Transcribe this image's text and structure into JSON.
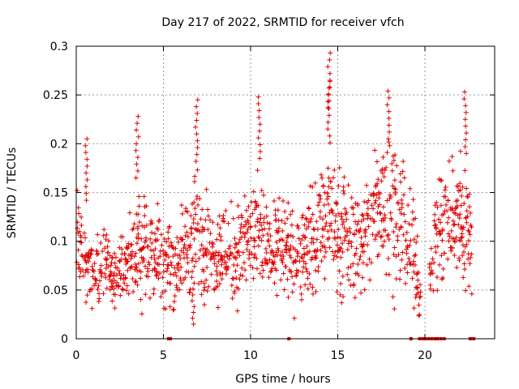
{
  "chart_data": {
    "type": "scatter",
    "title": "Day 217 of 2022, SRMTID for receiver vfch",
    "xlabel": "GPS time / hours",
    "ylabel": "SRMTID / TECUs",
    "xlim": [
      0,
      24
    ],
    "ylim": [
      0,
      0.3
    ],
    "x_ticks": [
      0,
      5,
      10,
      15,
      20
    ],
    "y_ticks": [
      0,
      0.05,
      0.1,
      0.15,
      0.2,
      0.25,
      0.3
    ],
    "x_tick_labels": [
      "0",
      "5",
      "10",
      "15",
      "20"
    ],
    "y_tick_labels": [
      "0",
      "0.05",
      "0.1",
      "0.15",
      "0.2",
      "0.25",
      "0.3"
    ],
    "grid": true,
    "marker": "+",
    "series": [
      {
        "name": "SRMTID",
        "color": "#e00000",
        "envelope": [
          {
            "x": 0.0,
            "y": 0.11
          },
          {
            "x": 0.5,
            "y": 0.085
          },
          {
            "x": 1.0,
            "y": 0.075
          },
          {
            "x": 1.5,
            "y": 0.08
          },
          {
            "x": 2.0,
            "y": 0.07
          },
          {
            "x": 2.5,
            "y": 0.07
          },
          {
            "x": 3.0,
            "y": 0.075
          },
          {
            "x": 3.5,
            "y": 0.09
          },
          {
            "x": 4.0,
            "y": 0.095
          },
          {
            "x": 4.5,
            "y": 0.09
          },
          {
            "x": 5.0,
            "y": 0.085
          },
          {
            "x": 5.5,
            "y": 0.075
          },
          {
            "x": 6.0,
            "y": 0.08
          },
          {
            "x": 6.5,
            "y": 0.1
          },
          {
            "x": 7.0,
            "y": 0.11
          },
          {
            "x": 7.5,
            "y": 0.1
          },
          {
            "x": 8.0,
            "y": 0.095
          },
          {
            "x": 8.5,
            "y": 0.09
          },
          {
            "x": 9.0,
            "y": 0.085
          },
          {
            "x": 9.5,
            "y": 0.09
          },
          {
            "x": 10.0,
            "y": 0.105
          },
          {
            "x": 10.5,
            "y": 0.1
          },
          {
            "x": 11.0,
            "y": 0.095
          },
          {
            "x": 11.5,
            "y": 0.09
          },
          {
            "x": 12.0,
            "y": 0.085
          },
          {
            "x": 12.5,
            "y": 0.08
          },
          {
            "x": 13.0,
            "y": 0.09
          },
          {
            "x": 13.5,
            "y": 0.1
          },
          {
            "x": 14.0,
            "y": 0.115
          },
          {
            "x": 14.5,
            "y": 0.12
          },
          {
            "x": 15.0,
            "y": 0.11
          },
          {
            "x": 15.5,
            "y": 0.1
          },
          {
            "x": 16.0,
            "y": 0.095
          },
          {
            "x": 16.5,
            "y": 0.1
          },
          {
            "x": 17.0,
            "y": 0.12
          },
          {
            "x": 17.5,
            "y": 0.14
          },
          {
            "x": 18.0,
            "y": 0.14
          },
          {
            "x": 18.5,
            "y": 0.125
          },
          {
            "x": 19.0,
            "y": 0.1
          },
          {
            "x": 19.5,
            "y": 0.08
          },
          {
            "x": 20.0,
            "y": 0.0
          },
          {
            "x": 20.5,
            "y": 0.1
          },
          {
            "x": 21.0,
            "y": 0.12
          },
          {
            "x": 21.5,
            "y": 0.13
          },
          {
            "x": 22.0,
            "y": 0.12
          },
          {
            "x": 22.5,
            "y": 0.11
          }
        ],
        "peaks": [
          {
            "x": 0.6,
            "y": 0.205
          },
          {
            "x": 3.5,
            "y": 0.228
          },
          {
            "x": 6.9,
            "y": 0.245
          },
          {
            "x": 10.5,
            "y": 0.248
          },
          {
            "x": 14.5,
            "y": 0.3
          },
          {
            "x": 14.5,
            "y": 0.264
          },
          {
            "x": 17.9,
            "y": 0.254
          },
          {
            "x": 22.3,
            "y": 0.253
          },
          {
            "x": 6.7,
            "y": 0.015
          }
        ],
        "zero_points_x": [
          5.3,
          5.4,
          12.2,
          19.2,
          19.7,
          19.9,
          20.0,
          20.2,
          20.4,
          20.6,
          20.7,
          20.9,
          21.1,
          22.6,
          22.8
        ]
      }
    ]
  }
}
